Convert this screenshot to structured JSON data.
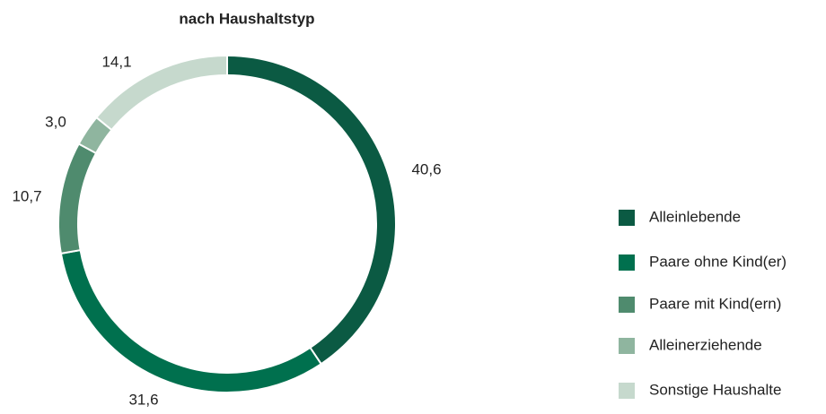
{
  "chart_data": {
    "type": "donut",
    "title": "nach Haushaltstyp",
    "categories": [
      "Alleinlebende",
      "Paare ohne Kind(er)",
      "Paare mit Kind(ern)",
      "Alleinerziehende",
      "Sonstige Haushalte"
    ],
    "values": [
      40.6,
      31.6,
      10.7,
      3.0,
      14.1
    ],
    "value_labels": [
      "40,6",
      "31,6",
      "10,7",
      "3,0",
      "14,1"
    ],
    "colors": [
      "#0b5a43",
      "#00704e",
      "#4f8b6e",
      "#8fb59f",
      "#c6d9cd"
    ],
    "legend": "right"
  }
}
